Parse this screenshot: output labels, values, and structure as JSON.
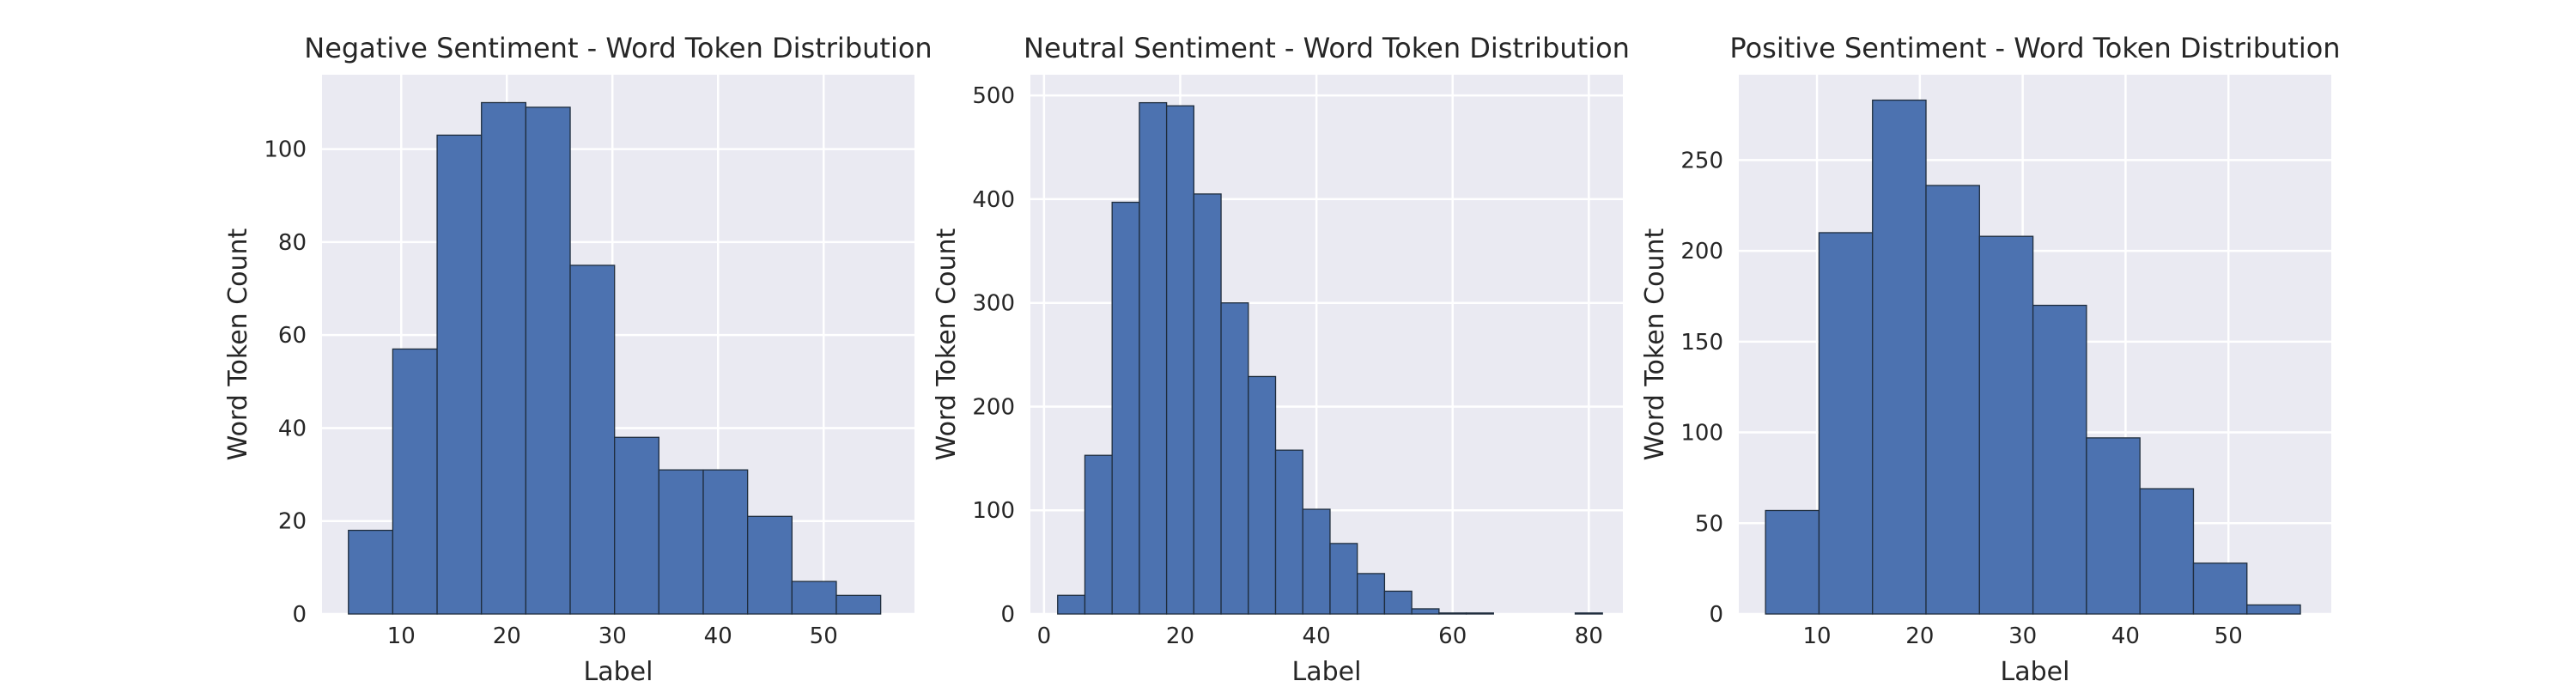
{
  "style": {
    "plot_bg": "#eaeaf2",
    "grid_color": "#ffffff",
    "bar_fill": "#4c72b0",
    "bar_edge": "#1f2d3d",
    "text_color": "#262626"
  },
  "chart_data": [
    {
      "type": "bar",
      "title": "Negative Sentiment - Word Token Distribution",
      "xlabel": "Label",
      "ylabel": "Word Token Count",
      "grid": true,
      "xlim": [
        2.5,
        58.6
      ],
      "ylim": [
        0,
        116
      ],
      "xticks": [
        10,
        20,
        30,
        40,
        50
      ],
      "yticks": [
        0,
        20,
        40,
        60,
        80,
        100
      ],
      "bins": [
        {
          "x0": 5.0,
          "x1": 9.2,
          "count": 18
        },
        {
          "x0": 9.2,
          "x1": 13.4,
          "count": 57
        },
        {
          "x0": 13.4,
          "x1": 17.6,
          "count": 103
        },
        {
          "x0": 17.6,
          "x1": 21.8,
          "count": 110
        },
        {
          "x0": 21.8,
          "x1": 26.0,
          "count": 109
        },
        {
          "x0": 26.0,
          "x1": 30.2,
          "count": 75
        },
        {
          "x0": 30.2,
          "x1": 34.4,
          "count": 38
        },
        {
          "x0": 34.4,
          "x1": 38.6,
          "count": 31
        },
        {
          "x0": 38.6,
          "x1": 42.8,
          "count": 31
        },
        {
          "x0": 42.8,
          "x1": 47.0,
          "count": 21
        },
        {
          "x0": 47.0,
          "x1": 51.2,
          "count": 7
        },
        {
          "x0": 51.2,
          "x1": 55.4,
          "count": 4
        }
      ]
    },
    {
      "type": "bar",
      "title": "Neutral Sentiment - Word Token Distribution",
      "xlabel": "Label",
      "ylabel": "Word Token Count",
      "grid": true,
      "xlim": [
        -2.0,
        85.0
      ],
      "ylim": [
        0,
        520
      ],
      "xticks": [
        0,
        20,
        40,
        60,
        80
      ],
      "yticks": [
        0,
        100,
        200,
        300,
        400,
        500
      ],
      "bins": [
        {
          "x0": 2.0,
          "x1": 6.0,
          "count": 18
        },
        {
          "x0": 6.0,
          "x1": 10.0,
          "count": 153
        },
        {
          "x0": 10.0,
          "x1": 14.0,
          "count": 397
        },
        {
          "x0": 14.0,
          "x1": 18.0,
          "count": 493
        },
        {
          "x0": 18.0,
          "x1": 22.0,
          "count": 490
        },
        {
          "x0": 22.0,
          "x1": 26.0,
          "count": 405
        },
        {
          "x0": 26.0,
          "x1": 30.0,
          "count": 300
        },
        {
          "x0": 30.0,
          "x1": 34.0,
          "count": 229
        },
        {
          "x0": 34.0,
          "x1": 38.0,
          "count": 158
        },
        {
          "x0": 38.0,
          "x1": 42.0,
          "count": 101
        },
        {
          "x0": 42.0,
          "x1": 46.0,
          "count": 68
        },
        {
          "x0": 46.0,
          "x1": 50.0,
          "count": 39
        },
        {
          "x0": 50.0,
          "x1": 54.0,
          "count": 22
        },
        {
          "x0": 54.0,
          "x1": 58.0,
          "count": 5
        },
        {
          "x0": 58.0,
          "x1": 62.0,
          "count": 1
        },
        {
          "x0": 62.0,
          "x1": 66.0,
          "count": 1
        },
        {
          "x0": 66.0,
          "x1": 70.0,
          "count": 0
        },
        {
          "x0": 70.0,
          "x1": 74.0,
          "count": 0
        },
        {
          "x0": 74.0,
          "x1": 78.0,
          "count": 0
        },
        {
          "x0": 78.0,
          "x1": 82.0,
          "count": 1
        }
      ]
    },
    {
      "type": "bar",
      "title": "Positive Sentiment - Word Token Distribution",
      "xlabel": "Label",
      "ylabel": "Word Token Count",
      "grid": true,
      "xlim": [
        2.4,
        60.0
      ],
      "ylim": [
        0,
        297
      ],
      "xticks": [
        10,
        20,
        30,
        40,
        50
      ],
      "yticks": [
        0,
        50,
        100,
        150,
        200,
        250
      ],
      "bins": [
        {
          "x0": 5.0,
          "x1": 10.2,
          "count": 57
        },
        {
          "x0": 10.2,
          "x1": 15.4,
          "count": 210
        },
        {
          "x0": 15.4,
          "x1": 20.6,
          "count": 283
        },
        {
          "x0": 20.6,
          "x1": 25.8,
          "count": 236
        },
        {
          "x0": 25.8,
          "x1": 31.0,
          "count": 208
        },
        {
          "x0": 31.0,
          "x1": 36.2,
          "count": 170
        },
        {
          "x0": 36.2,
          "x1": 41.4,
          "count": 97
        },
        {
          "x0": 41.4,
          "x1": 46.6,
          "count": 69
        },
        {
          "x0": 46.6,
          "x1": 51.8,
          "count": 28
        },
        {
          "x0": 51.8,
          "x1": 57.0,
          "count": 5
        }
      ]
    }
  ]
}
